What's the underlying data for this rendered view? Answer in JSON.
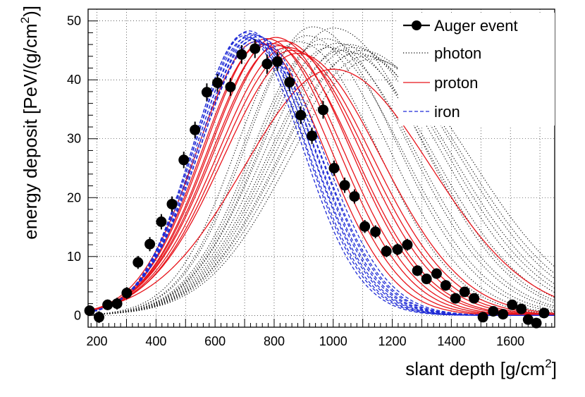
{
  "chart_data": {
    "type": "line",
    "title": "",
    "xlabel": {
      "base": "slant depth [g/cm",
      "sup": "2",
      "end": "]"
    },
    "ylabel": {
      "base": "energy deposit [PeV/(g/cm",
      "sup": "2",
      "end": ")]"
    },
    "xlim": [
      170,
      1750
    ],
    "ylim": [
      -2,
      52
    ],
    "x_ticks": [
      200,
      400,
      600,
      800,
      1000,
      1200,
      1400,
      1600
    ],
    "y_ticks": [
      0,
      10,
      20,
      30,
      40,
      50
    ],
    "grid": true,
    "legend_position": "top-right",
    "legend": [
      {
        "label": "Auger event",
        "style": "points"
      },
      {
        "label": "photon",
        "style": "dotted"
      },
      {
        "label": "proton",
        "style": "solid"
      },
      {
        "label": "iron",
        "style": "dashed"
      }
    ],
    "colors": {
      "auger": "#000000",
      "photon": "#000000",
      "proton": "#e8141b",
      "iron": "#1f2bd6"
    },
    "auger_points": [
      {
        "x": 175,
        "y": 0.8,
        "err": 0.9
      },
      {
        "x": 207,
        "y": -0.3,
        "err": 1.0
      },
      {
        "x": 236,
        "y": 1.8,
        "err": 0.9
      },
      {
        "x": 268,
        "y": 2.0,
        "err": 1.0
      },
      {
        "x": 301,
        "y": 3.8,
        "err": 1.0
      },
      {
        "x": 339,
        "y": 9.0,
        "err": 1.1
      },
      {
        "x": 379,
        "y": 12.1,
        "err": 1.2
      },
      {
        "x": 418,
        "y": 15.9,
        "err": 1.3
      },
      {
        "x": 454,
        "y": 18.9,
        "err": 1.3
      },
      {
        "x": 494,
        "y": 26.4,
        "err": 1.4
      },
      {
        "x": 532,
        "y": 31.5,
        "err": 1.4
      },
      {
        "x": 572,
        "y": 37.9,
        "err": 1.5
      },
      {
        "x": 608,
        "y": 39.5,
        "err": 1.5
      },
      {
        "x": 652,
        "y": 38.8,
        "err": 1.5
      },
      {
        "x": 690,
        "y": 44.3,
        "err": 1.6
      },
      {
        "x": 735,
        "y": 45.3,
        "err": 1.6
      },
      {
        "x": 776,
        "y": 42.7,
        "err": 1.6
      },
      {
        "x": 811,
        "y": 43.1,
        "err": 1.6
      },
      {
        "x": 852,
        "y": 39.6,
        "err": 1.5
      },
      {
        "x": 890,
        "y": 34.0,
        "err": 1.5
      },
      {
        "x": 928,
        "y": 30.5,
        "err": 1.4
      },
      {
        "x": 966,
        "y": 34.9,
        "err": 1.5
      },
      {
        "x": 1003,
        "y": 25.0,
        "err": 1.3
      },
      {
        "x": 1039,
        "y": 22.1,
        "err": 1.3
      },
      {
        "x": 1072,
        "y": 20.2,
        "err": 1.2
      },
      {
        "x": 1107,
        "y": 15.1,
        "err": 1.1
      },
      {
        "x": 1143,
        "y": 14.2,
        "err": 1.1
      },
      {
        "x": 1180,
        "y": 10.9,
        "err": 1.0
      },
      {
        "x": 1218,
        "y": 11.2,
        "err": 1.0
      },
      {
        "x": 1251,
        "y": 12.0,
        "err": 1.0
      },
      {
        "x": 1285,
        "y": 7.6,
        "err": 0.9
      },
      {
        "x": 1316,
        "y": 6.2,
        "err": 0.9
      },
      {
        "x": 1350,
        "y": 7.1,
        "err": 0.9
      },
      {
        "x": 1381,
        "y": 5.1,
        "err": 0.9
      },
      {
        "x": 1414,
        "y": 2.9,
        "err": 0.8
      },
      {
        "x": 1445,
        "y": 4.0,
        "err": 0.8
      },
      {
        "x": 1477,
        "y": 2.9,
        "err": 0.8
      },
      {
        "x": 1507,
        "y": -0.3,
        "err": 0.8
      },
      {
        "x": 1542,
        "y": 0.7,
        "err": 0.8
      },
      {
        "x": 1575,
        "y": 0.2,
        "err": 0.8
      },
      {
        "x": 1606,
        "y": 1.8,
        "err": 0.8
      },
      {
        "x": 1637,
        "y": 1.1,
        "err": 0.8
      },
      {
        "x": 1660,
        "y": -0.7,
        "err": 0.8
      },
      {
        "x": 1688,
        "y": -1.3,
        "err": 0.8
      },
      {
        "x": 1714,
        "y": 0.4,
        "err": 0.8
      }
    ],
    "series": [
      {
        "name": "iron 1",
        "kind": "iron",
        "xmax": 700,
        "ymax": 47.5,
        "sl": 175,
        "sr": 195
      },
      {
        "name": "iron 2",
        "kind": "iron",
        "xmax": 705,
        "ymax": 48.0,
        "sl": 178,
        "sr": 198
      },
      {
        "name": "iron 3",
        "kind": "iron",
        "xmax": 710,
        "ymax": 47.2,
        "sl": 180,
        "sr": 200
      },
      {
        "name": "iron 4",
        "kind": "iron",
        "xmax": 715,
        "ymax": 48.3,
        "sl": 182,
        "sr": 202
      },
      {
        "name": "iron 5",
        "kind": "iron",
        "xmax": 720,
        "ymax": 47.0,
        "sl": 184,
        "sr": 204
      },
      {
        "name": "iron 6",
        "kind": "iron",
        "xmax": 725,
        "ymax": 47.8,
        "sl": 186,
        "sr": 206
      },
      {
        "name": "iron 7",
        "kind": "iron",
        "xmax": 730,
        "ymax": 46.8,
        "sl": 188,
        "sr": 208
      },
      {
        "name": "iron 8",
        "kind": "iron",
        "xmax": 735,
        "ymax": 47.6,
        "sl": 190,
        "sr": 210
      },
      {
        "name": "iron 9",
        "kind": "iron",
        "xmax": 740,
        "ymax": 46.5,
        "sl": 192,
        "sr": 212
      },
      {
        "name": "iron 10",
        "kind": "iron",
        "xmax": 745,
        "ymax": 47.3,
        "sl": 195,
        "sr": 215
      },
      {
        "name": "proton 1",
        "kind": "proton",
        "xmax": 740,
        "ymax": 46.5,
        "sl": 200,
        "sr": 230
      },
      {
        "name": "proton 2",
        "kind": "proton",
        "xmax": 760,
        "ymax": 46.0,
        "sl": 205,
        "sr": 235
      },
      {
        "name": "proton 3",
        "kind": "proton",
        "xmax": 775,
        "ymax": 47.0,
        "sl": 210,
        "sr": 240
      },
      {
        "name": "proton 4",
        "kind": "proton",
        "xmax": 790,
        "ymax": 46.2,
        "sl": 215,
        "sr": 245
      },
      {
        "name": "proton 5",
        "kind": "proton",
        "xmax": 805,
        "ymax": 47.2,
        "sl": 220,
        "sr": 250
      },
      {
        "name": "proton 6",
        "kind": "proton",
        "xmax": 815,
        "ymax": 45.8,
        "sl": 225,
        "sr": 255
      },
      {
        "name": "proton 7",
        "kind": "proton",
        "xmax": 830,
        "ymax": 46.6,
        "sl": 230,
        "sr": 260
      },
      {
        "name": "proton 8",
        "kind": "proton",
        "xmax": 845,
        "ymax": 45.5,
        "sl": 235,
        "sr": 265
      },
      {
        "name": "proton 9",
        "kind": "proton",
        "xmax": 860,
        "ymax": 45.0,
        "sl": 240,
        "sr": 270
      },
      {
        "name": "proton 10",
        "kind": "proton",
        "xmax": 880,
        "ymax": 44.5,
        "sl": 250,
        "sr": 280
      },
      {
        "name": "proton 11",
        "kind": "proton",
        "xmax": 1000,
        "ymax": 41.8,
        "sl": 300,
        "sr": 330
      },
      {
        "name": "photon 1",
        "kind": "photon",
        "xmax": 880,
        "ymax": 46.5,
        "sl": 210,
        "sr": 270
      },
      {
        "name": "photon 2",
        "kind": "photon",
        "xmax": 910,
        "ymax": 47.5,
        "sl": 215,
        "sr": 275
      },
      {
        "name": "photon 3",
        "kind": "photon",
        "xmax": 930,
        "ymax": 49.0,
        "sl": 220,
        "sr": 280
      },
      {
        "name": "photon 4",
        "kind": "photon",
        "xmax": 950,
        "ymax": 46.0,
        "sl": 225,
        "sr": 285
      },
      {
        "name": "photon 5",
        "kind": "photon",
        "xmax": 970,
        "ymax": 47.0,
        "sl": 230,
        "sr": 290
      },
      {
        "name": "photon 6",
        "kind": "photon",
        "xmax": 985,
        "ymax": 45.5,
        "sl": 235,
        "sr": 295
      },
      {
        "name": "photon 7",
        "kind": "photon",
        "xmax": 1000,
        "ymax": 48.8,
        "sl": 240,
        "sr": 300
      },
      {
        "name": "photon 8",
        "kind": "photon",
        "xmax": 1015,
        "ymax": 46.2,
        "sl": 245,
        "sr": 305
      },
      {
        "name": "photon 9",
        "kind": "photon",
        "xmax": 1030,
        "ymax": 45.0,
        "sl": 250,
        "sr": 310
      },
      {
        "name": "photon 10",
        "kind": "photon",
        "xmax": 1050,
        "ymax": 46.0,
        "sl": 255,
        "sr": 315
      },
      {
        "name": "photon 11",
        "kind": "photon",
        "xmax": 1065,
        "ymax": 45.5,
        "sl": 260,
        "sr": 320
      },
      {
        "name": "photon 12",
        "kind": "photon",
        "xmax": 1080,
        "ymax": 44.5,
        "sl": 265,
        "sr": 325
      },
      {
        "name": "photon 13",
        "kind": "photon",
        "xmax": 1095,
        "ymax": 45.0,
        "sl": 270,
        "sr": 330
      },
      {
        "name": "photon 14",
        "kind": "photon",
        "xmax": 1110,
        "ymax": 44.0,
        "sl": 275,
        "sr": 335
      },
      {
        "name": "photon 15",
        "kind": "photon",
        "xmax": 1130,
        "ymax": 43.5,
        "sl": 280,
        "sr": 340
      }
    ]
  }
}
